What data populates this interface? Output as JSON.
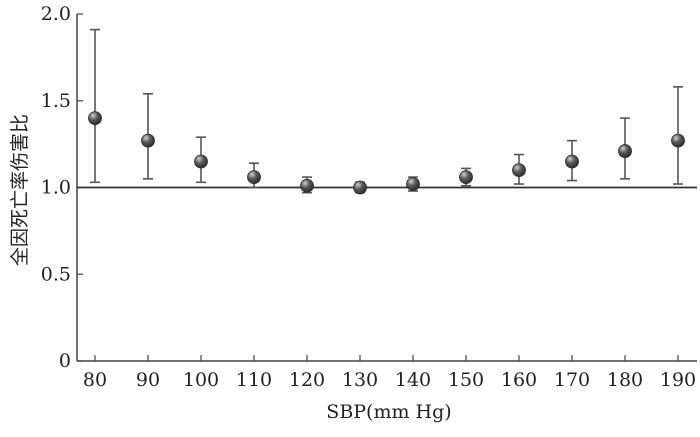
{
  "chart_data": {
    "type": "scatter",
    "title": "",
    "xlabel": "SBP(mm Hg)",
    "ylabel": "全因死亡率伤害比",
    "x_ticks": [
      "80",
      "90",
      "100",
      "110",
      "120",
      "130",
      "140",
      "150",
      "160",
      "170",
      "180",
      "190"
    ],
    "y_ticks": [
      "0",
      "0.5",
      "1.0",
      "1.5",
      "2.0"
    ],
    "y_tick_values": [
      0,
      0.5,
      1.0,
      1.5,
      2.0
    ],
    "ylim": [
      0,
      2.0
    ],
    "reference_line": 1.0,
    "grid": false,
    "points": [
      {
        "x": 80,
        "y": 1.4,
        "lower": 1.03,
        "upper": 1.91
      },
      {
        "x": 90,
        "y": 1.27,
        "lower": 1.05,
        "upper": 1.54
      },
      {
        "x": 100,
        "y": 1.15,
        "lower": 1.03,
        "upper": 1.29
      },
      {
        "x": 110,
        "y": 1.06,
        "lower": 1.0,
        "upper": 1.14
      },
      {
        "x": 120,
        "y": 1.01,
        "lower": 0.97,
        "upper": 1.06
      },
      {
        "x": 130,
        "y": 1.0,
        "lower": 0.97,
        "upper": 1.03
      },
      {
        "x": 140,
        "y": 1.02,
        "lower": 0.98,
        "upper": 1.06
      },
      {
        "x": 150,
        "y": 1.06,
        "lower": 1.01,
        "upper": 1.11
      },
      {
        "x": 160,
        "y": 1.1,
        "lower": 1.02,
        "upper": 1.19
      },
      {
        "x": 170,
        "y": 1.15,
        "lower": 1.04,
        "upper": 1.27
      },
      {
        "x": 180,
        "y": 1.21,
        "lower": 1.05,
        "upper": 1.4
      },
      {
        "x": 190,
        "y": 1.27,
        "lower": 1.02,
        "upper": 1.58
      }
    ],
    "colors": {
      "axis": "#444444",
      "errorbar": "#555555",
      "marker_fill": "#5a5a5a",
      "marker_highlight": "#cfcfcf",
      "marker_stroke": "#2a2a2a",
      "reference": "#333333"
    }
  }
}
